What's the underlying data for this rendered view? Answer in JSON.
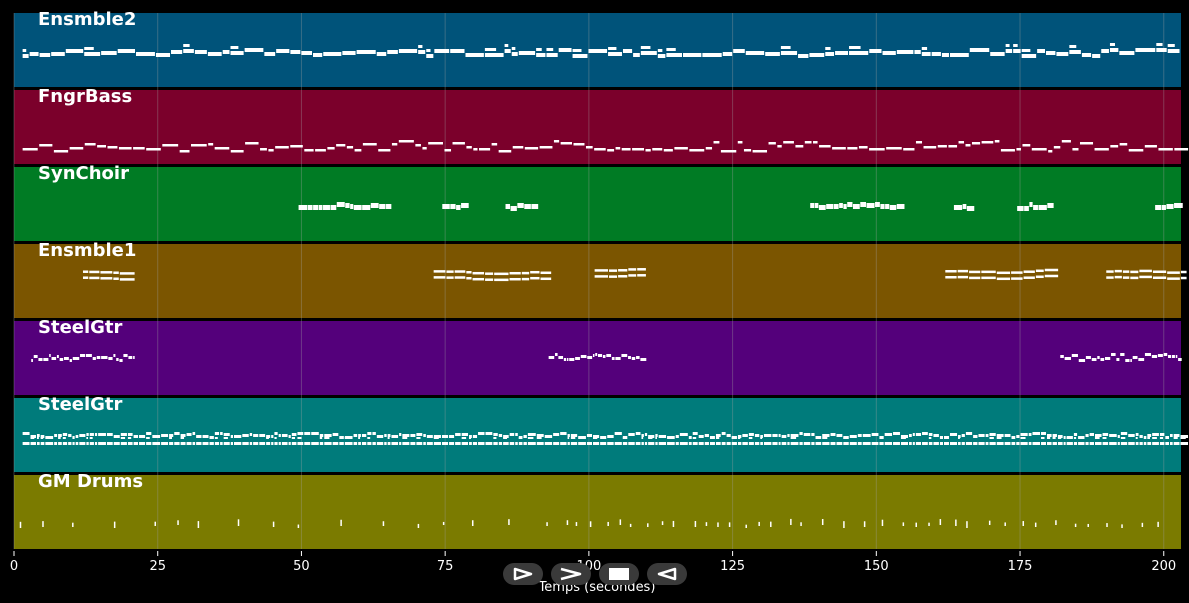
{
  "xaxis": {
    "title": "Temps (secondes)",
    "ticks": [
      0,
      25,
      50,
      75,
      100,
      125,
      150,
      175,
      200
    ],
    "range": [
      0,
      203
    ]
  },
  "tracks": [
    {
      "name": "Ensmble2",
      "color": "#00537a"
    },
    {
      "name": "FngrBass",
      "color": "#7b002b"
    },
    {
      "name": "SynChoir",
      "color": "#007b24"
    },
    {
      "name": "Ensmble1",
      "color": "#7b5500"
    },
    {
      "name": "SteelGtr",
      "color": "#54007b"
    },
    {
      "name": "SteelGtr",
      "color": "#007b7b"
    },
    {
      "name": "GM Drums",
      "color": "#7b7b00"
    }
  ],
  "transport": {
    "buttons": [
      "play",
      "fast-forward",
      "stop",
      "rewind"
    ]
  },
  "note_color": "#ffffff",
  "grid_color": "#a0a0a0"
}
